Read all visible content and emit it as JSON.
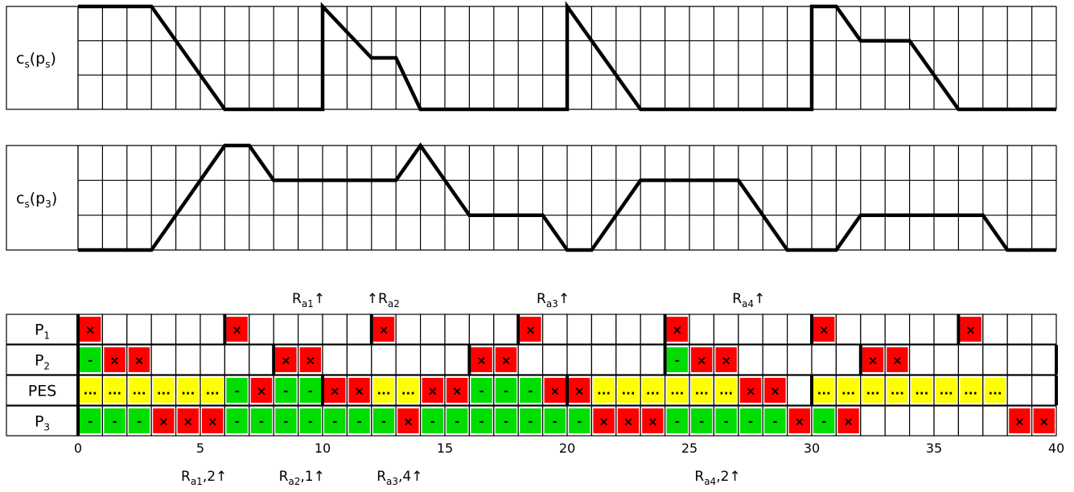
{
  "grid": {
    "columns": 40
  },
  "colors": {
    "red": "#ff0000",
    "green": "#00dd00",
    "yellow": "#ffff00",
    "grid_line": "#000000"
  },
  "symbols": {
    "R": "×",
    "G": "-",
    "Y": "..."
  },
  "charts": [
    {
      "label_main": "c",
      "label_sub1": "s",
      "label_mid": "(p",
      "label_sub2": "s",
      "label_end": ")",
      "levels": 3,
      "polyline": [
        [
          0,
          3
        ],
        [
          3,
          3
        ],
        [
          6,
          0
        ],
        [
          10,
          0
        ],
        [
          10,
          3
        ],
        [
          12,
          1.5
        ],
        [
          13,
          1.5
        ],
        [
          14,
          0
        ],
        [
          20,
          0
        ],
        [
          20,
          3
        ],
        [
          23,
          0
        ],
        [
          30,
          0
        ],
        [
          30,
          3
        ],
        [
          31,
          3
        ],
        [
          32,
          2
        ],
        [
          34,
          2
        ],
        [
          36,
          0
        ],
        [
          40,
          0
        ]
      ]
    },
    {
      "label_main": "c",
      "label_sub1": "s",
      "label_mid": "(p",
      "label_sub2": "3",
      "label_end": ")",
      "levels": 3,
      "polyline": [
        [
          0,
          0
        ],
        [
          3,
          0
        ],
        [
          6,
          3
        ],
        [
          7,
          3
        ],
        [
          8,
          2
        ],
        [
          13,
          2
        ],
        [
          14,
          3
        ],
        [
          16,
          1
        ],
        [
          19,
          1
        ],
        [
          20,
          0
        ],
        [
          21,
          0
        ],
        [
          23,
          2
        ],
        [
          27,
          2
        ],
        [
          29,
          0
        ],
        [
          31,
          0
        ],
        [
          32,
          1
        ],
        [
          37,
          1
        ],
        [
          38,
          0
        ],
        [
          40,
          0
        ]
      ]
    }
  ],
  "rows": [
    {
      "label_main": "P",
      "label_sub": "1",
      "cells": "R.....R.....R.....R.....R.....R.....R...",
      "markers": [
        0,
        6,
        12,
        18,
        24,
        30,
        36
      ]
    },
    {
      "label_main": "P",
      "label_sub": "2",
      "cells": "GRR.....RR......RR......GRR.....RR......",
      "markers": [
        0,
        8,
        16,
        24,
        32,
        40
      ]
    },
    {
      "label_main": "PES",
      "label_sub": "",
      "cells": "YYYYYYGRGGRRYYRRGGGRRYYYYYYRR.YYYYYYYY..",
      "markers": [
        0,
        10,
        20,
        30,
        40
      ]
    },
    {
      "label_main": "P",
      "label_sub": "3",
      "cells": "GGGRRRGGGGGGGRGGGGGGGRRRGGGGGRGR......RR",
      "markers": [
        0
      ]
    }
  ],
  "axis": {
    "ticks": [
      "0",
      "5",
      "10",
      "15",
      "20",
      "25",
      "30",
      "35",
      "40"
    ]
  },
  "top_annotations": [
    {
      "main": "R",
      "sub": "a1",
      "tail": "↑",
      "at": 10
    },
    {
      "main": "↑R",
      "sub": "a2",
      "tail": "",
      "at": 12
    },
    {
      "main": "R",
      "sub": "a3",
      "tail": "↑",
      "at": 20
    },
    {
      "main": "R",
      "sub": "a4",
      "tail": "↑",
      "at": 28
    }
  ],
  "bottom_annotations": [
    {
      "main": "R",
      "sub": "a1",
      "tail": ",2↑",
      "at": 5
    },
    {
      "main": "R",
      "sub": "a2",
      "tail": ",1↑",
      "at": 9
    },
    {
      "main": "R",
      "sub": "a3",
      "tail": ",4↑",
      "at": 13
    },
    {
      "main": "R",
      "sub": "a4",
      "tail": ",2↑",
      "at": 26
    }
  ]
}
